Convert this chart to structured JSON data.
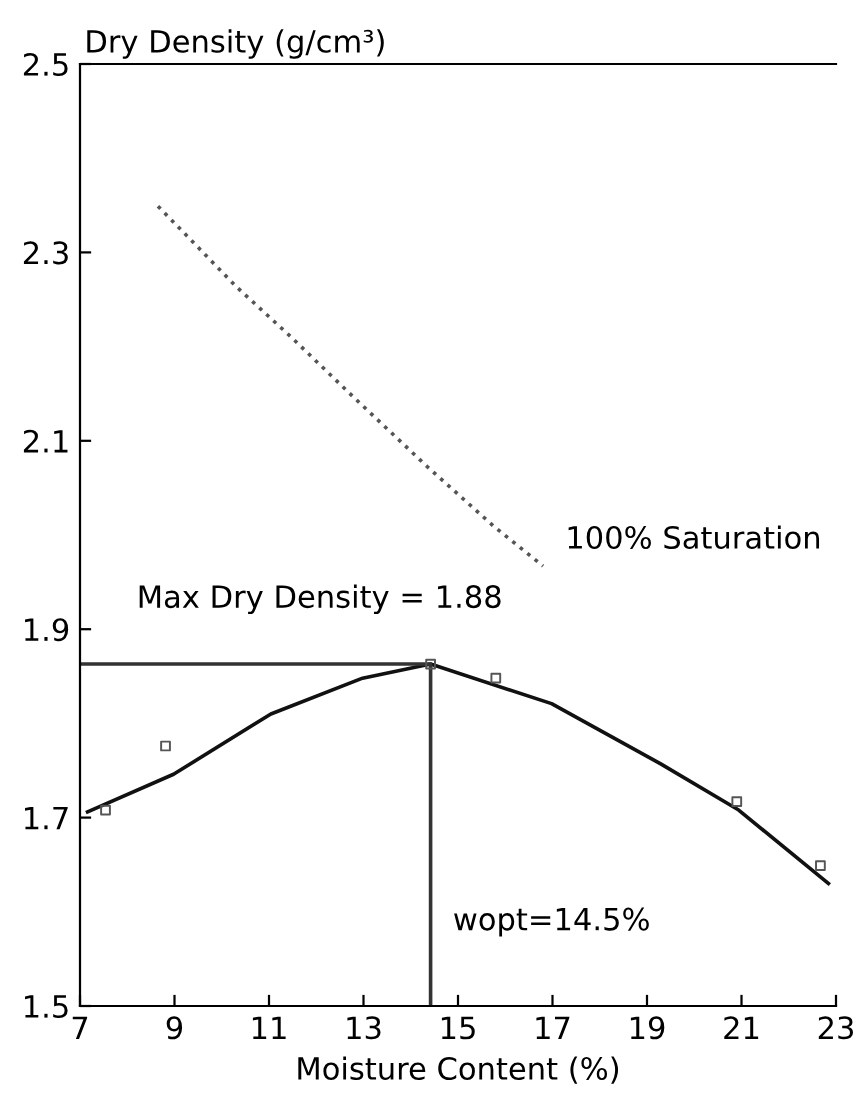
{
  "chart_data": {
    "type": "line",
    "xlabel": "Moisture Content (%)",
    "ylabel": "Dry Density (g/cm³)",
    "xlim": [
      7,
      23
    ],
    "xticks": [
      7,
      9,
      11,
      13,
      15,
      17,
      19,
      21,
      23
    ],
    "ylim": [
      1.5,
      2.5
    ],
    "yticks": [
      1.5,
      1.7,
      1.9,
      2.1,
      2.3,
      2.5
    ],
    "grid": false,
    "series": [
      {
        "color": "#111111",
        "line_style": "solid",
        "x": [
          7.16,
          8.98,
          11.04,
          12.98,
          14.42,
          16.98,
          19.29,
          20.94,
          22.84
        ],
        "values": [
          1.706,
          1.746,
          1.81,
          1.848,
          1.863,
          1.821,
          1.757,
          1.708,
          1.63
        ]
      },
      {
        "type": "scatter",
        "color": "#555555",
        "marker": "square",
        "x": [
          7.54,
          8.81,
          14.42,
          15.8,
          20.9,
          22.67
        ],
        "values": [
          1.708,
          1.776,
          1.863,
          1.848,
          1.717,
          1.649
        ]
      },
      {
        "color": "#555555",
        "line_style": "dotted",
        "x": [
          8.65,
          9.1,
          10.3,
          11.45,
          12.86,
          14.34,
          15.74,
          16.8
        ],
        "values": [
          2.349,
          2.326,
          2.264,
          2.211,
          2.143,
          2.073,
          2.01,
          1.967
        ]
      },
      {
        "color": "#333333",
        "line_style": "solid",
        "x": [
          7,
          14.42,
          14.42
        ],
        "values": [
          1.863,
          1.863,
          1.5
        ]
      }
    ],
    "annotations": [
      "100% Saturation",
      {
        "text": "Max Dry Density = 1.88",
        "x": 8.2,
        "y": 1.863
      },
      {
        "text": "wopt=14.5%",
        "x": 14.42,
        "y": 1.5
      }
    ]
  }
}
